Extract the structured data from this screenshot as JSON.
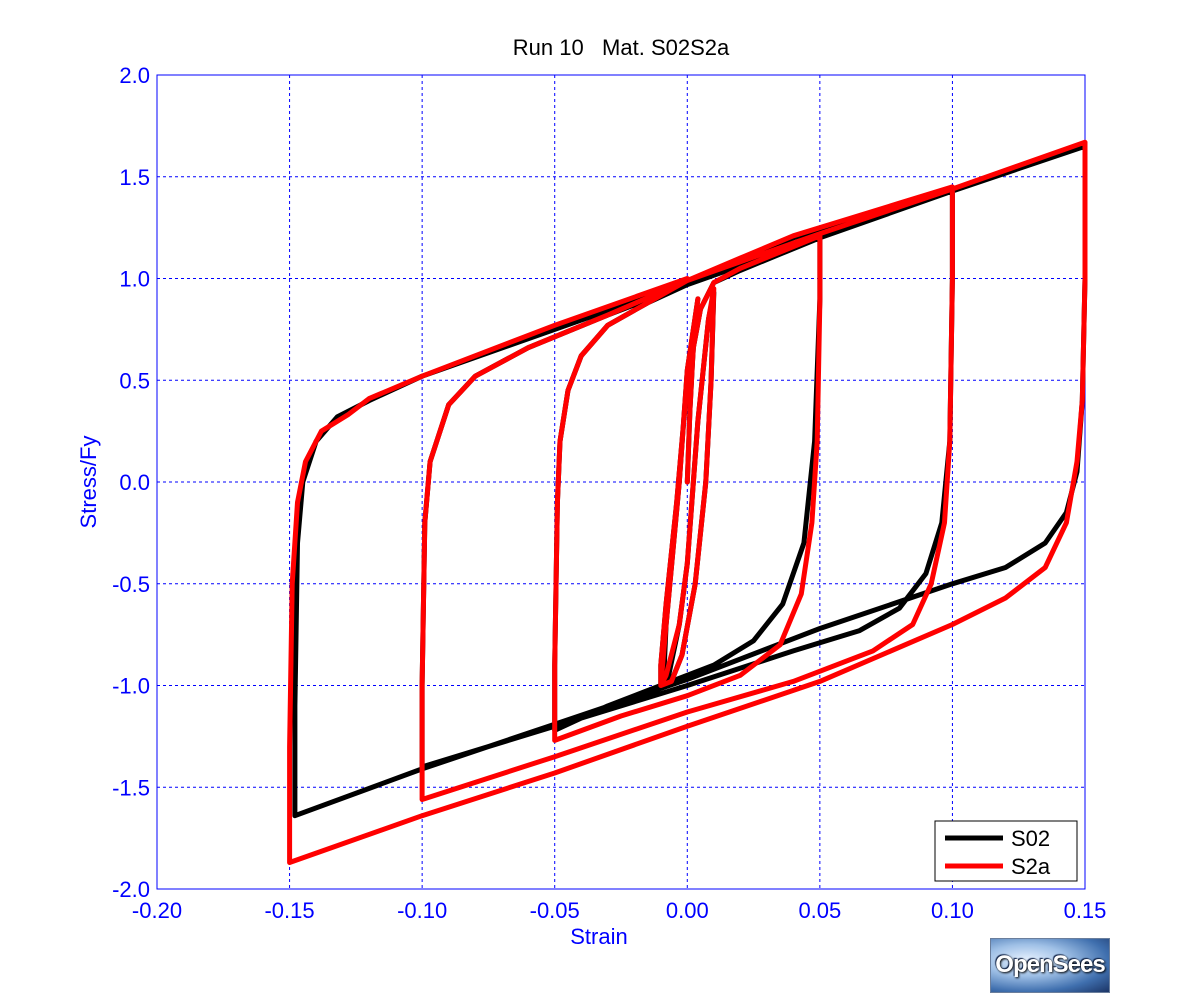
{
  "chart_data": {
    "type": "line",
    "title": "Run 10   Mat. S02S2a",
    "xlabel": "Strain",
    "ylabel": "Stress/Fy",
    "xlim": [
      -0.2,
      0.15
    ],
    "ylim": [
      -2.0,
      2.0
    ],
    "xticks": [
      -0.2,
      -0.15,
      -0.1,
      -0.05,
      0.0,
      0.05,
      0.1,
      0.15
    ],
    "xtick_labels": [
      "-0.20",
      "-0.15",
      "-0.10",
      "-0.05",
      "0.00",
      "0.05",
      "0.10",
      "0.15"
    ],
    "yticks": [
      -2.0,
      -1.5,
      -1.0,
      -0.5,
      0.0,
      0.5,
      1.0,
      1.5,
      2.0
    ],
    "ytick_labels": [
      "-2.0",
      "-1.5",
      "-1.0",
      "-0.5",
      "0.0",
      "0.5",
      "1.0",
      "1.5",
      "2.0"
    ],
    "grid": true,
    "legend_position": "bottom-right",
    "series": [
      {
        "name": "S02",
        "color": "#000000",
        "x": [
          0.0,
          0.001,
          0.002,
          0.003,
          0.004,
          0.0,
          -0.003,
          -0.008,
          -0.009,
          -0.007,
          -0.003,
          0.0,
          0.004,
          0.008,
          0.01,
          0.009,
          0.007,
          0.003,
          -0.002,
          -0.006,
          -0.01,
          -0.01,
          -0.008,
          -0.004,
          0.0,
          0.005,
          0.01,
          0.02,
          0.035,
          0.05,
          0.05,
          0.048,
          0.044,
          0.036,
          0.025,
          0.01,
          -0.01,
          -0.03,
          -0.05,
          -0.05,
          -0.049,
          -0.048,
          -0.045,
          -0.04,
          -0.03,
          -0.015,
          0.0,
          0.02,
          0.04,
          0.06,
          0.08,
          0.1,
          0.1,
          0.099,
          0.096,
          0.09,
          0.08,
          0.065,
          0.04,
          0.0,
          -0.05,
          -0.1,
          -0.1,
          -0.099,
          -0.097,
          -0.09,
          -0.08,
          -0.06,
          -0.03,
          0.0,
          0.05,
          0.1,
          0.15,
          0.15,
          0.149,
          0.147,
          0.143,
          0.135,
          0.12,
          0.1,
          0.05,
          0.0,
          -0.05,
          -0.1,
          -0.148,
          -0.148,
          -0.147,
          -0.145,
          -0.14,
          -0.132,
          -0.12,
          -0.1,
          -0.05,
          0.0
        ],
        "y": [
          0.0,
          0.35,
          0.6,
          0.8,
          0.9,
          0.55,
          0.0,
          -0.7,
          -1.0,
          -0.95,
          -0.7,
          -0.4,
          0.3,
          0.8,
          0.93,
          0.5,
          0.0,
          -0.5,
          -0.85,
          -0.98,
          -1.0,
          -0.9,
          -0.6,
          -0.1,
          0.5,
          0.85,
          0.98,
          1.04,
          1.12,
          1.2,
          0.9,
          0.2,
          -0.3,
          -0.6,
          -0.78,
          -0.9,
          -1.0,
          -1.1,
          -1.22,
          -0.9,
          -0.1,
          0.2,
          0.45,
          0.62,
          0.77,
          0.88,
          0.97,
          1.08,
          1.2,
          1.28,
          1.36,
          1.44,
          1.0,
          0.2,
          -0.2,
          -0.45,
          -0.62,
          -0.73,
          -0.83,
          -1.0,
          -1.2,
          -1.4,
          -1.0,
          -0.2,
          0.1,
          0.38,
          0.52,
          0.66,
          0.82,
          0.97,
          1.2,
          1.43,
          1.65,
          1.0,
          0.4,
          0.05,
          -0.15,
          -0.3,
          -0.42,
          -0.5,
          -0.72,
          -0.97,
          -1.19,
          -1.41,
          -1.64,
          -1.1,
          -0.3,
          0.0,
          0.2,
          0.32,
          0.4,
          0.52,
          0.75,
          0.98
        ]
      },
      {
        "name": "S2a",
        "color": "#ff0000",
        "x": [
          0.0,
          0.001,
          0.002,
          0.003,
          0.004,
          0.0,
          -0.003,
          -0.008,
          -0.01,
          -0.008,
          -0.003,
          0.0,
          0.004,
          0.008,
          0.01,
          0.009,
          0.007,
          0.003,
          -0.002,
          -0.006,
          -0.01,
          -0.01,
          -0.008,
          -0.004,
          0.0,
          0.005,
          0.01,
          0.02,
          0.035,
          0.05,
          0.05,
          0.049,
          0.047,
          0.043,
          0.035,
          0.02,
          0.0,
          -0.025,
          -0.05,
          -0.05,
          -0.049,
          -0.048,
          -0.045,
          -0.04,
          -0.03,
          -0.015,
          0.0,
          0.02,
          0.04,
          0.06,
          0.08,
          0.1,
          0.1,
          0.099,
          0.097,
          0.092,
          0.085,
          0.07,
          0.04,
          0.0,
          -0.05,
          -0.1,
          -0.1,
          -0.099,
          -0.097,
          -0.09,
          -0.08,
          -0.06,
          -0.03,
          0.0,
          0.05,
          0.1,
          0.15,
          0.15,
          0.149,
          0.147,
          0.143,
          0.135,
          0.12,
          0.1,
          0.05,
          0.0,
          -0.05,
          -0.1,
          -0.15,
          -0.15,
          -0.149,
          -0.147,
          -0.144,
          -0.138,
          -0.128,
          -0.12,
          -0.1,
          -0.05,
          0.0
        ],
        "y": [
          0.0,
          0.35,
          0.6,
          0.8,
          0.9,
          0.55,
          0.0,
          -0.7,
          -1.0,
          -0.95,
          -0.7,
          -0.4,
          0.3,
          0.8,
          0.95,
          0.5,
          0.0,
          -0.5,
          -0.85,
          -0.98,
          -1.0,
          -0.9,
          -0.6,
          -0.1,
          0.5,
          0.85,
          0.98,
          1.05,
          1.13,
          1.21,
          0.9,
          0.2,
          -0.2,
          -0.55,
          -0.8,
          -0.95,
          -1.05,
          -1.15,
          -1.27,
          -0.9,
          -0.1,
          0.2,
          0.45,
          0.62,
          0.77,
          0.88,
          0.99,
          1.1,
          1.21,
          1.29,
          1.37,
          1.45,
          1.0,
          0.2,
          -0.2,
          -0.5,
          -0.7,
          -0.83,
          -0.98,
          -1.13,
          -1.35,
          -1.56,
          -1.0,
          -0.2,
          0.1,
          0.38,
          0.52,
          0.66,
          0.82,
          0.99,
          1.22,
          1.44,
          1.67,
          1.0,
          0.4,
          0.1,
          -0.2,
          -0.42,
          -0.57,
          -0.7,
          -0.98,
          -1.2,
          -1.43,
          -1.64,
          -1.87,
          -1.3,
          -0.5,
          -0.1,
          0.1,
          0.25,
          0.33,
          0.41,
          0.52,
          0.77,
          1.0
        ]
      }
    ]
  },
  "logo": {
    "text": "OpenSees"
  }
}
